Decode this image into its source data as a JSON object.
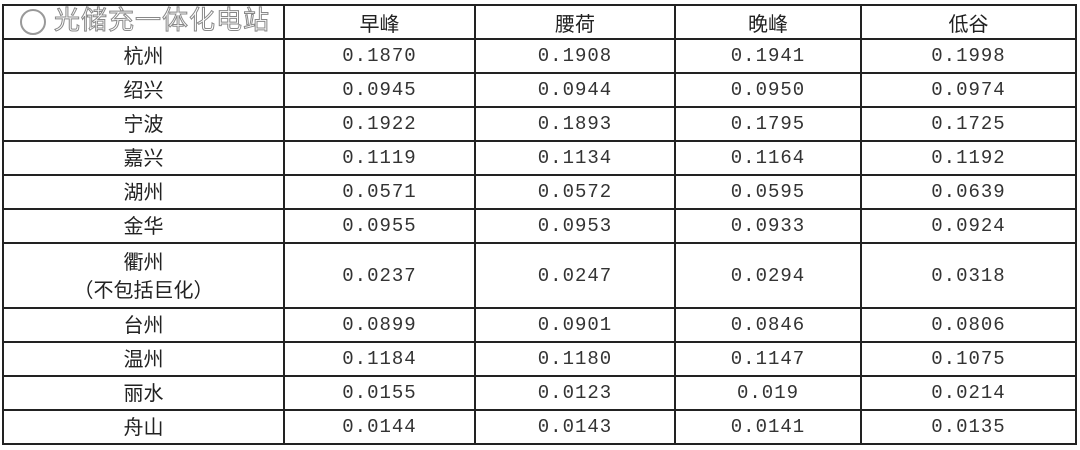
{
  "headers": [
    "",
    "早峰",
    "腰荷",
    "晚峰",
    "低谷"
  ],
  "rows": [
    {
      "city": "杭州",
      "values": [
        "0.1870",
        "0.1908",
        "0.1941",
        "0.1998"
      ]
    },
    {
      "city": "绍兴",
      "values": [
        "0.0945",
        "0.0944",
        "0.0950",
        "0.0974"
      ]
    },
    {
      "city": "宁波",
      "values": [
        "0.1922",
        "0.1893",
        "0.1795",
        "0.1725"
      ]
    },
    {
      "city": "嘉兴",
      "values": [
        "0.1119",
        "0.1134",
        "0.1164",
        "0.1192"
      ]
    },
    {
      "city": "湖州",
      "values": [
        "0.0571",
        "0.0572",
        "0.0595",
        "0.0639"
      ]
    },
    {
      "city": "金华",
      "values": [
        "0.0955",
        "0.0953",
        "0.0933",
        "0.0924"
      ]
    },
    {
      "city": "衢州",
      "city_note": "（不包括巨化）",
      "values": [
        "0.0237",
        "0.0247",
        "0.0294",
        "0.0318"
      ]
    },
    {
      "city": "台州",
      "values": [
        "0.0899",
        "0.0901",
        "0.0846",
        "0.0806"
      ]
    },
    {
      "city": "温州",
      "values": [
        "0.1184",
        "0.1180",
        "0.1147",
        "0.1075"
      ]
    },
    {
      "city": "丽水",
      "values": [
        "0.0155",
        "0.0123",
        "0.019",
        "0.0214"
      ]
    },
    {
      "city": "舟山",
      "values": [
        "0.0144",
        "0.0143",
        "0.0141",
        "0.0135"
      ]
    }
  ],
  "watermark": {
    "text": "光储充一体化电站",
    "icon": "wechat-icon"
  }
}
